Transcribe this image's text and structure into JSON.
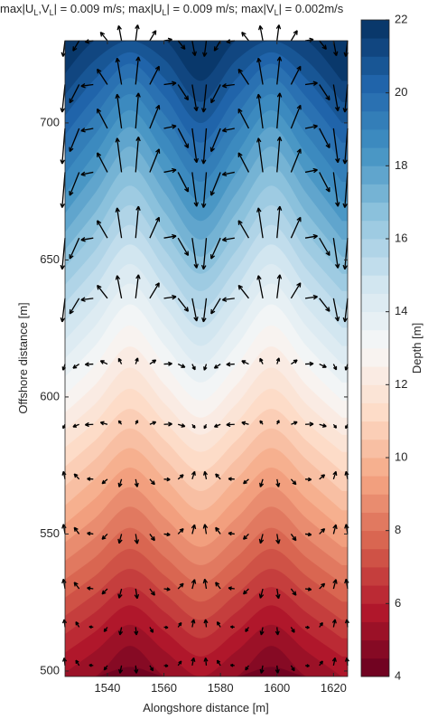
{
  "chart_data": {
    "type": "contour_quiver",
    "title_parts": [
      "max|U",
      "L",
      ",V",
      "L",
      "| = 0.009 m/s; max|U",
      "L",
      "| = 0.009 m/s; max|V",
      "L",
      "| = 0.002m/s"
    ],
    "xlabel": "Alongshore distance [m]",
    "ylabel": "Offshore distance [m]",
    "colorbar_label": "Depth [m]",
    "xlim": [
      1525,
      1625
    ],
    "ylim": [
      498,
      730
    ],
    "xticks": [
      1540,
      1560,
      1580,
      1600,
      1620
    ],
    "yticks": [
      500,
      550,
      600,
      650,
      700
    ],
    "clim": [
      4,
      22
    ],
    "cticks": [
      4,
      6,
      8,
      10,
      12,
      14,
      16,
      18,
      20,
      22
    ],
    "contour_step": 0.5,
    "colormap": [
      "#67001f",
      "#b2182b",
      "#d6604d",
      "#f4a582",
      "#fddbc7",
      "#f7f7f7",
      "#d1e5f0",
      "#92c5de",
      "#4393c3",
      "#2166ac",
      "#053061"
    ],
    "arrow_color": "#000000",
    "depth": {
      "x": [
        1523,
        1535.5,
        1548,
        1560.5,
        1573,
        1585.5,
        1598,
        1610.5,
        1623
      ],
      "y": [
        500,
        520,
        540,
        560,
        580,
        600,
        620,
        640,
        660,
        680,
        700,
        720,
        730
      ],
      "values": [
        [
          5.6,
          5.0,
          4.4,
          5.0,
          5.6,
          5.0,
          4.4,
          5.0,
          5.6
        ],
        [
          7.1,
          6.4,
          5.7,
          6.4,
          7.1,
          6.4,
          5.7,
          6.4,
          7.1
        ],
        [
          8.6,
          7.9,
          7.2,
          7.9,
          8.6,
          7.9,
          7.2,
          7.9,
          8.6
        ],
        [
          10.1,
          9.3,
          8.5,
          9.3,
          10.1,
          9.3,
          8.5,
          9.3,
          10.1
        ],
        [
          11.5,
          10.7,
          9.9,
          10.7,
          11.5,
          10.7,
          9.9,
          10.7,
          11.5
        ],
        [
          13.1,
          12.2,
          11.3,
          12.2,
          13.1,
          12.2,
          11.3,
          12.2,
          13.1
        ],
        [
          14.6,
          13.6,
          12.6,
          13.6,
          14.6,
          13.6,
          12.6,
          13.6,
          14.6
        ],
        [
          16.1,
          15.0,
          13.9,
          15.0,
          16.1,
          15.0,
          13.9,
          15.0,
          16.1
        ],
        [
          17.7,
          16.5,
          15.3,
          16.5,
          17.7,
          16.5,
          15.3,
          16.5,
          17.7
        ],
        [
          19.1,
          17.9,
          16.7,
          17.9,
          19.1,
          17.9,
          16.7,
          17.9,
          19.1
        ],
        [
          20.5,
          19.3,
          18.1,
          19.3,
          20.5,
          19.3,
          18.1,
          19.3,
          20.5
        ],
        [
          21.8,
          20.8,
          19.8,
          20.8,
          21.8,
          20.8,
          19.8,
          20.8,
          21.8
        ],
        [
          22.0,
          21.5,
          21.0,
          21.5,
          22.0,
          21.5,
          21.0,
          21.5,
          22.0
        ]
      ]
    },
    "quiver": {
      "x": [
        1525,
        1530,
        1535,
        1540,
        1545,
        1550,
        1555,
        1560,
        1565,
        1570,
        1575,
        1580,
        1585,
        1590,
        1595,
        1600,
        1605,
        1610,
        1615,
        1620,
        1625
      ],
      "y": [
        730,
        714,
        698,
        682,
        658,
        636,
        612,
        590,
        570,
        550,
        530,
        516,
        502
      ],
      "u": [
        [
          -0.0005,
          -0.0015,
          -0.002,
          -0.0017,
          -0.0007,
          0.0005,
          0.0015,
          0.002,
          0.0017,
          0.0007,
          -0.0005,
          -0.0015,
          -0.002,
          -0.0017,
          -0.0007,
          0.0005,
          0.0015,
          0.002,
          0.0017,
          0.0007,
          -0.0005
        ],
        [
          -0.0007,
          -0.0023,
          -0.003,
          -0.0025,
          -0.0011,
          0.0007,
          0.0023,
          0.003,
          0.0025,
          0.0011,
          -0.0007,
          -0.0023,
          -0.003,
          -0.0025,
          -0.0011,
          0.0007,
          0.0023,
          0.003,
          0.0025,
          0.0011,
          -0.0007
        ],
        [
          -0.0007,
          -0.0023,
          -0.003,
          -0.0025,
          -0.0011,
          0.0007,
          0.0023,
          0.003,
          0.0025,
          0.0011,
          -0.0007,
          -0.0023,
          -0.003,
          -0.0025,
          -0.0011,
          0.0007,
          0.0023,
          0.003,
          0.0025,
          0.0011,
          -0.0007
        ],
        [
          -0.0007,
          -0.0023,
          -0.003,
          -0.0025,
          -0.0011,
          0.0007,
          0.0023,
          0.003,
          0.0025,
          0.0011,
          -0.0007,
          -0.0023,
          -0.003,
          -0.0025,
          -0.0011,
          0.0007,
          0.0023,
          0.003,
          0.0025,
          0.0011,
          -0.0007
        ],
        [
          -0.0007,
          -0.0023,
          -0.003,
          -0.0025,
          -0.0011,
          0.0007,
          0.0023,
          0.003,
          0.0025,
          0.0011,
          -0.0007,
          -0.0023,
          -0.003,
          -0.0025,
          -0.0011,
          0.0007,
          0.0023,
          0.003,
          0.0025,
          0.0011,
          -0.0007
        ],
        [
          -0.0007,
          -0.0023,
          -0.003,
          -0.0025,
          -0.0011,
          0.0007,
          0.0023,
          0.003,
          0.0025,
          0.0011,
          -0.0007,
          -0.0023,
          -0.003,
          -0.0025,
          -0.0011,
          0.0007,
          0.0023,
          0.003,
          0.0025,
          0.0011,
          -0.0007
        ],
        [
          -0.0005,
          -0.0015,
          -0.002,
          -0.0017,
          -0.0007,
          0.0005,
          0.0015,
          0.002,
          0.0017,
          0.0007,
          -0.0005,
          -0.0015,
          -0.002,
          -0.0017,
          -0.0007,
          0.0005,
          0.0015,
          0.002,
          0.0017,
          0.0007,
          -0.0005
        ],
        [
          -0.0005,
          -0.0015,
          -0.002,
          -0.0017,
          -0.0007,
          0.0005,
          0.0015,
          0.002,
          0.0017,
          0.0007,
          -0.0005,
          -0.0015,
          -0.002,
          -0.0017,
          -0.0007,
          0.0005,
          0.0015,
          0.002,
          0.0017,
          0.0007,
          -0.0005
        ],
        [
          -0.0004,
          -0.0012,
          -0.0015,
          -0.0013,
          -0.0006,
          0.0004,
          0.0012,
          0.0015,
          0.0013,
          0.0006,
          -0.0004,
          -0.0012,
          -0.0015,
          -0.0013,
          -0.0006,
          0.0004,
          0.0012,
          0.0015,
          0.0013,
          0.0006,
          -0.0004
        ],
        [
          -0.0004,
          -0.0012,
          -0.0015,
          -0.0013,
          -0.0006,
          0.0004,
          0.0012,
          0.0015,
          0.0013,
          0.0006,
          -0.0004,
          -0.0012,
          -0.0015,
          -0.0013,
          -0.0006,
          0.0004,
          0.0012,
          0.0015,
          0.0013,
          0.0006,
          -0.0004
        ],
        [
          -0.0004,
          -0.0012,
          -0.0015,
          -0.0013,
          -0.0006,
          0.0004,
          0.0012,
          0.0015,
          0.0013,
          0.0006,
          -0.0004,
          -0.0012,
          -0.0015,
          -0.0013,
          -0.0006,
          0.0004,
          0.0012,
          0.0015,
          0.0013,
          0.0006,
          -0.0004
        ],
        [
          -0.0002,
          -0.0008,
          -0.001,
          -0.0008,
          -0.0004,
          0.0002,
          0.0008,
          0.001,
          0.0008,
          0.0004,
          -0.0002,
          -0.0008,
          -0.001,
          -0.0008,
          -0.0004,
          0.0002,
          0.0008,
          0.001,
          0.0008,
          0.0004,
          -0.0002
        ],
        [
          -0.0002,
          -0.0008,
          -0.001,
          -0.0008,
          -0.0004,
          0.0002,
          0.0008,
          0.001,
          0.0008,
          0.0004,
          -0.0002,
          -0.0008,
          -0.001,
          -0.0008,
          -0.0004,
          0.0002,
          0.0008,
          0.001,
          0.0008,
          0.0004,
          -0.0002
        ]
      ],
      "v": [
        [
          -0.0039,
          -0.0025,
          -0.0003,
          0.0021,
          0.0037,
          0.0039,
          0.0025,
          0.0003,
          -0.0021,
          -0.0037,
          -0.0039,
          -0.0025,
          -0.0003,
          0.0021,
          0.0037,
          0.0039,
          0.0025,
          0.0003,
          -0.0021,
          -0.0037,
          -0.0039
        ],
        [
          -0.0068,
          -0.0045,
          -0.0004,
          0.0038,
          0.0065,
          0.0068,
          0.0045,
          0.0004,
          -0.0038,
          -0.0065,
          -0.0068,
          -0.0045,
          -0.0004,
          0.0038,
          0.0065,
          0.0068,
          0.0045,
          0.0004,
          -0.0038,
          -0.0065,
          -0.0068
        ],
        [
          -0.0087,
          -0.0057,
          -0.0006,
          0.0048,
          0.0084,
          0.0087,
          0.0057,
          0.0006,
          -0.0048,
          -0.0084,
          -0.0087,
          -0.0057,
          -0.0006,
          0.0048,
          0.0084,
          0.0087,
          0.0057,
          0.0006,
          -0.0048,
          -0.0084,
          -0.0087
        ],
        [
          -0.0087,
          -0.0057,
          -0.0006,
          0.0048,
          0.0084,
          0.0087,
          0.0057,
          0.0006,
          -0.0048,
          -0.0084,
          -0.0087,
          -0.0057,
          -0.0006,
          0.0048,
          0.0084,
          0.0087,
          0.0057,
          0.0006,
          -0.0048,
          -0.0084,
          -0.0087
        ],
        [
          -0.0077,
          -0.0051,
          -0.0005,
          0.0043,
          0.0074,
          0.0078,
          0.0051,
          0.0005,
          -0.0043,
          -0.0074,
          -0.0077,
          -0.0051,
          -0.0005,
          0.0043,
          0.0074,
          0.0078,
          0.0051,
          0.0005,
          -0.0043,
          -0.0074,
          -0.0077
        ],
        [
          -0.0058,
          -0.0038,
          -0.0004,
          0.0032,
          0.0056,
          0.0058,
          0.0038,
          0.0004,
          -0.0032,
          -0.0056,
          -0.0058,
          -0.0038,
          -0.0004,
          0.0032,
          0.0056,
          0.0058,
          0.0038,
          0.0004,
          -0.0032,
          -0.0056,
          -0.0058
        ],
        [
          -0.0015,
          -0.001,
          -0.0001,
          0.0008,
          0.0014,
          0.0015,
          0.001,
          0.0001,
          -0.0008,
          -0.0014,
          -0.0015,
          -0.001,
          -0.0001,
          0.0008,
          0.0014,
          0.0015,
          0.001,
          0.0001,
          -0.0008,
          -0.0014,
          -0.0015
        ],
        [
          -0.001,
          -0.0006,
          -0.0001,
          0.0005,
          0.0009,
          0.001,
          0.0006,
          0.0001,
          -0.0005,
          -0.0009,
          -0.001,
          -0.0006,
          -0.0001,
          0.0005,
          0.0009,
          0.001,
          0.0006,
          0.0001,
          -0.0005,
          -0.0009,
          -0.001
        ],
        [
          0.0019,
          0.0013,
          0.0001,
          -0.0011,
          -0.0019,
          -0.0019,
          -0.0013,
          -0.0001,
          0.0011,
          0.0019,
          0.0019,
          0.0013,
          0.0001,
          -0.0011,
          -0.0019,
          -0.0019,
          -0.0013,
          -0.0001,
          0.0011,
          0.0019,
          0.0019
        ],
        [
          0.0024,
          0.0016,
          0.0002,
          -0.0013,
          -0.0023,
          -0.0024,
          -0.0016,
          -0.0002,
          0.0013,
          0.0023,
          0.0024,
          0.0016,
          0.0002,
          -0.0013,
          -0.0023,
          -0.0024,
          -0.0016,
          -0.0002,
          0.0013,
          0.0023,
          0.0024
        ],
        [
          0.0024,
          0.0016,
          0.0002,
          -0.0013,
          -0.0023,
          -0.0024,
          -0.0016,
          -0.0002,
          0.0013,
          0.0023,
          0.0024,
          0.0016,
          0.0002,
          -0.0013,
          -0.0023,
          -0.0024,
          -0.0016,
          -0.0002,
          0.0013,
          0.0023,
          0.0024
        ],
        [
          0.0019,
          0.0013,
          0.0001,
          -0.0011,
          -0.0019,
          -0.0019,
          -0.0013,
          -0.0001,
          0.0011,
          0.0019,
          0.0019,
          0.0013,
          0.0001,
          -0.0011,
          -0.0019,
          -0.0019,
          -0.0013,
          -0.0001,
          0.0011,
          0.0019,
          0.0019
        ],
        [
          0.0019,
          0.0013,
          0.0001,
          -0.0011,
          -0.0019,
          -0.0019,
          -0.0013,
          -0.0001,
          0.0011,
          0.0019,
          0.0019,
          0.0013,
          0.0001,
          -0.0011,
          -0.0019,
          -0.0019,
          -0.0013,
          -0.0001,
          0.0011,
          0.0019,
          0.0019
        ]
      ]
    }
  }
}
